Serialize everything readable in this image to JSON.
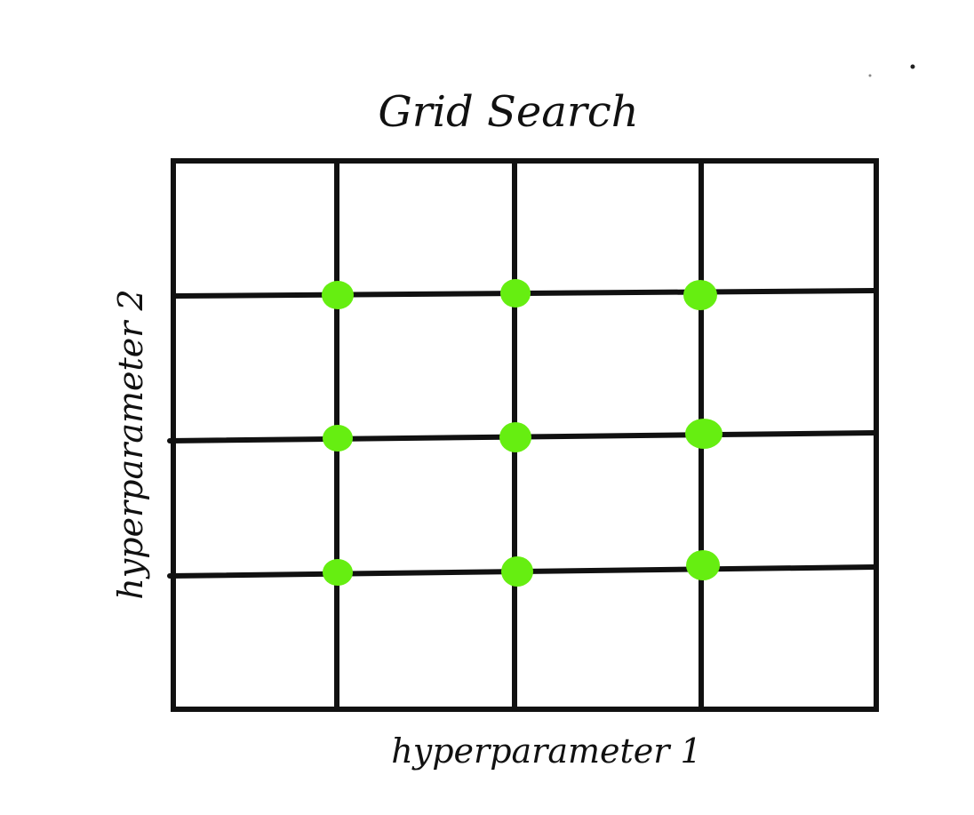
{
  "diagram": {
    "title": "Grid Search",
    "x_axis_label": "hyperparameter 1",
    "y_axis_label": "hyperparameter 2",
    "grid": {
      "columns": 4,
      "rows": 4
    },
    "sample_points": [
      {
        "x": 1,
        "y": 1
      },
      {
        "x": 2,
        "y": 1
      },
      {
        "x": 3,
        "y": 1
      },
      {
        "x": 1,
        "y": 2
      },
      {
        "x": 2,
        "y": 2
      },
      {
        "x": 3,
        "y": 2
      },
      {
        "x": 1,
        "y": 3
      },
      {
        "x": 2,
        "y": 3
      },
      {
        "x": 3,
        "y": 3
      }
    ],
    "colors": {
      "line": "#111111",
      "point": "#66ee11"
    }
  }
}
